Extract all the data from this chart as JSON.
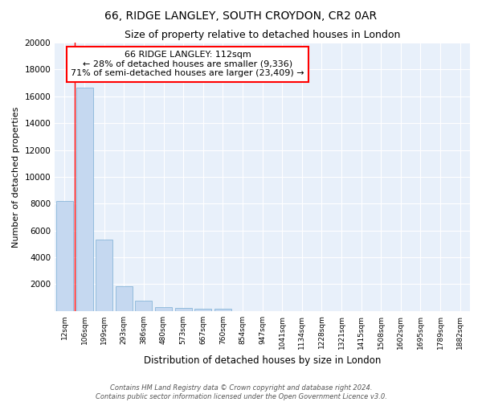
{
  "title": "66, RIDGE LANGLEY, SOUTH CROYDON, CR2 0AR",
  "subtitle": "Size of property relative to detached houses in London",
  "xlabel": "Distribution of detached houses by size in London",
  "ylabel": "Number of detached properties",
  "bar_color": "#c5d8f0",
  "bar_edge_color": "#7aadd4",
  "background_color": "#e8f0fa",
  "grid_color": "#ffffff",
  "categories": [
    "12sqm",
    "106sqm",
    "199sqm",
    "293sqm",
    "386sqm",
    "480sqm",
    "573sqm",
    "667sqm",
    "760sqm",
    "854sqm",
    "947sqm",
    "1041sqm",
    "1134sqm",
    "1228sqm",
    "1321sqm",
    "1415sqm",
    "1508sqm",
    "1602sqm",
    "1695sqm",
    "1789sqm",
    "1882sqm"
  ],
  "values": [
    8200,
    16650,
    5300,
    1820,
    750,
    300,
    200,
    160,
    140,
    0,
    0,
    0,
    0,
    0,
    0,
    0,
    0,
    0,
    0,
    0,
    0
  ],
  "ylim": [
    0,
    20000
  ],
  "yticks": [
    0,
    2000,
    4000,
    6000,
    8000,
    10000,
    12000,
    14000,
    16000,
    18000,
    20000
  ],
  "red_line_x": 0.5,
  "annotation_text_line1": "66 RIDGE LANGLEY: 112sqm",
  "annotation_text_line2": "← 28% of detached houses are smaller (9,336)",
  "annotation_text_line3": "71% of semi-detached houses are larger (23,409) →",
  "footer_line1": "Contains HM Land Registry data © Crown copyright and database right 2024.",
  "footer_line2": "Contains public sector information licensed under the Open Government Licence v3.0."
}
